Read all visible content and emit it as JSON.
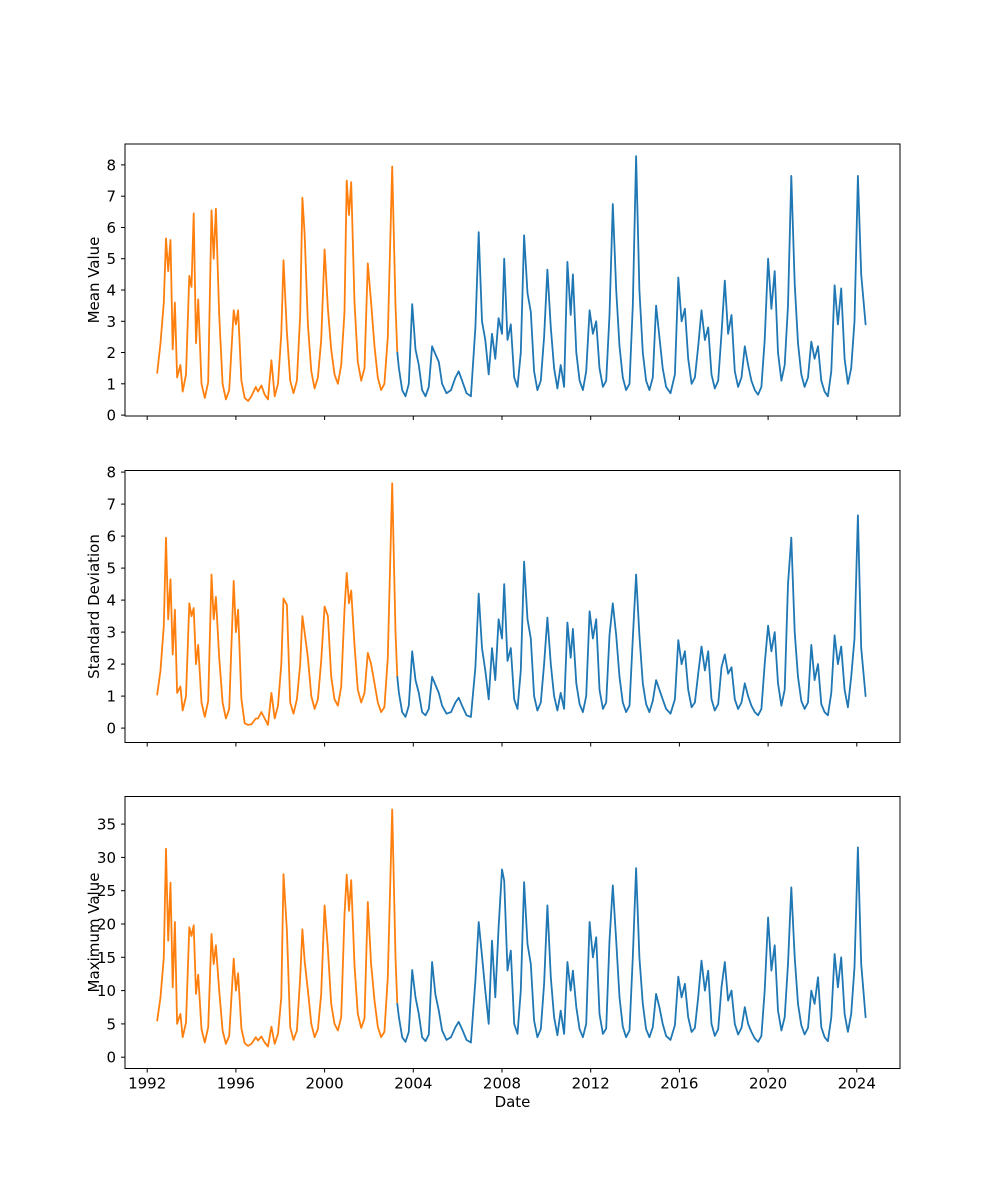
{
  "figure": {
    "background": "#ffffff"
  },
  "chart_data": {
    "type": "line",
    "title": "",
    "xlabel": "Date",
    "grid": false,
    "legend": "none",
    "x_ticks": [
      1992,
      1996,
      2000,
      2004,
      2008,
      2012,
      2016,
      2020,
      2024
    ],
    "xlim": [
      1991.0,
      2025.95
    ],
    "split_year": 2003.28,
    "segments": [
      {
        "name": "pre-2003-segment",
        "color": "#ff7f0e"
      },
      {
        "name": "post-2003-segment",
        "color": "#1f77b4"
      }
    ],
    "subplots": [
      {
        "ylabel": "Mean Value",
        "yticks": [
          0,
          1,
          2,
          3,
          4,
          5,
          6,
          7,
          8
        ],
        "ylim": [
          -0.03,
          8.67
        ]
      },
      {
        "ylabel": "Standard Deviation",
        "yticks": [
          0,
          1,
          2,
          3,
          4,
          5,
          6,
          7,
          8
        ],
        "ylim": [
          -0.45,
          8.05
        ]
      },
      {
        "ylabel": "Maximum Value",
        "yticks": [
          0,
          5,
          10,
          15,
          20,
          25,
          30,
          35
        ],
        "ylim": [
          -1.7,
          39.15
        ]
      }
    ],
    "columns": [
      "date_decimal_year",
      "mean",
      "std",
      "max"
    ],
    "points": [
      [
        1992.45,
        1.35,
        1.05,
        5.5
      ],
      [
        1992.6,
        2.3,
        1.8,
        9.0
      ],
      [
        1992.75,
        3.6,
        3.2,
        15.0
      ],
      [
        1992.85,
        5.65,
        5.95,
        31.3
      ],
      [
        1992.95,
        4.6,
        3.4,
        17.5
      ],
      [
        1993.05,
        5.6,
        4.65,
        26.2
      ],
      [
        1993.15,
        2.1,
        2.3,
        10.5
      ],
      [
        1993.25,
        3.6,
        3.7,
        20.3
      ],
      [
        1993.35,
        1.2,
        1.1,
        5.0
      ],
      [
        1993.5,
        1.6,
        1.3,
        6.5
      ],
      [
        1993.6,
        0.75,
        0.55,
        3.0
      ],
      [
        1993.75,
        1.3,
        1.0,
        5.2
      ],
      [
        1993.9,
        4.45,
        3.9,
        19.5
      ],
      [
        1994.0,
        4.1,
        3.5,
        18.2
      ],
      [
        1994.1,
        6.45,
        3.75,
        19.8
      ],
      [
        1994.2,
        2.3,
        2.0,
        9.5
      ],
      [
        1994.3,
        3.7,
        2.6,
        12.4
      ],
      [
        1994.45,
        1.0,
        0.8,
        4.2
      ],
      [
        1994.6,
        0.55,
        0.35,
        2.2
      ],
      [
        1994.75,
        1.05,
        0.85,
        4.5
      ],
      [
        1994.9,
        6.55,
        4.8,
        18.5
      ],
      [
        1995.0,
        5.0,
        3.4,
        14.0
      ],
      [
        1995.1,
        6.6,
        4.1,
        16.8
      ],
      [
        1995.25,
        3.2,
        2.2,
        10.0
      ],
      [
        1995.4,
        1.0,
        0.8,
        4.0
      ],
      [
        1995.55,
        0.5,
        0.3,
        2.0
      ],
      [
        1995.7,
        0.8,
        0.6,
        3.2
      ],
      [
        1995.9,
        3.35,
        4.6,
        14.8
      ],
      [
        1996.0,
        2.9,
        3.0,
        10.0
      ],
      [
        1996.1,
        3.35,
        3.7,
        12.6
      ],
      [
        1996.25,
        1.1,
        0.9,
        4.3
      ],
      [
        1996.4,
        0.55,
        0.15,
        2.1
      ],
      [
        1996.55,
        0.45,
        0.1,
        1.7
      ],
      [
        1996.7,
        0.6,
        0.12,
        2.0
      ],
      [
        1996.9,
        0.9,
        0.3,
        3.0
      ],
      [
        1997.0,
        0.75,
        0.3,
        2.5
      ],
      [
        1997.15,
        0.95,
        0.5,
        3.1
      ],
      [
        1997.3,
        0.65,
        0.3,
        2.2
      ],
      [
        1997.45,
        0.5,
        0.1,
        1.6
      ],
      [
        1997.6,
        1.75,
        1.1,
        4.6
      ],
      [
        1997.75,
        0.6,
        0.3,
        2.0
      ],
      [
        1997.9,
        1.0,
        0.7,
        3.5
      ],
      [
        1998.05,
        2.6,
        2.0,
        9.0
      ],
      [
        1998.15,
        4.95,
        4.05,
        27.5
      ],
      [
        1998.3,
        2.65,
        3.85,
        19.0
      ],
      [
        1998.45,
        1.1,
        0.8,
        4.5
      ],
      [
        1998.6,
        0.7,
        0.45,
        2.6
      ],
      [
        1998.75,
        1.1,
        0.9,
        4.0
      ],
      [
        1998.9,
        3.2,
        2.0,
        12.0
      ],
      [
        1999.0,
        6.95,
        3.5,
        19.2
      ],
      [
        1999.1,
        5.8,
        3.0,
        14.5
      ],
      [
        1999.25,
        2.9,
        2.2,
        10.0
      ],
      [
        1999.4,
        1.4,
        1.0,
        5.0
      ],
      [
        1999.55,
        0.85,
        0.6,
        3.0
      ],
      [
        1999.7,
        1.2,
        0.9,
        4.2
      ],
      [
        1999.85,
        2.4,
        2.1,
        9.5
      ],
      [
        2000.0,
        5.3,
        3.8,
        22.8
      ],
      [
        2000.15,
        3.4,
        3.5,
        16.2
      ],
      [
        2000.3,
        2.1,
        1.6,
        8.0
      ],
      [
        2000.45,
        1.3,
        0.9,
        5.0
      ],
      [
        2000.6,
        1.0,
        0.7,
        4.0
      ],
      [
        2000.75,
        1.6,
        1.3,
        6.0
      ],
      [
        2000.9,
        3.3,
        3.7,
        21.4
      ],
      [
        2001.0,
        7.5,
        4.85,
        27.4
      ],
      [
        2001.1,
        6.4,
        3.9,
        22.0
      ],
      [
        2001.2,
        7.45,
        4.3,
        26.6
      ],
      [
        2001.35,
        3.6,
        2.6,
        13.8
      ],
      [
        2001.5,
        1.7,
        1.2,
        6.5
      ],
      [
        2001.65,
        1.1,
        0.8,
        4.4
      ],
      [
        2001.8,
        1.5,
        1.1,
        5.8
      ],
      [
        2001.95,
        4.85,
        2.35,
        23.3
      ],
      [
        2002.1,
        3.6,
        2.0,
        14.0
      ],
      [
        2002.25,
        2.2,
        1.4,
        8.5
      ],
      [
        2002.4,
        1.2,
        0.8,
        4.6
      ],
      [
        2002.55,
        0.8,
        0.5,
        3.0
      ],
      [
        2002.7,
        1.0,
        0.65,
        3.8
      ],
      [
        2002.85,
        2.5,
        2.2,
        12.0
      ],
      [
        2003.05,
        7.95,
        7.65,
        37.2
      ],
      [
        2003.2,
        3.5,
        3.0,
        15.0
      ],
      [
        2003.28,
        2.0,
        1.6,
        8.0
      ],
      [
        2003.35,
        1.5,
        1.1,
        6.0
      ],
      [
        2003.5,
        0.8,
        0.5,
        3.0
      ],
      [
        2003.65,
        0.6,
        0.35,
        2.3
      ],
      [
        2003.8,
        1.0,
        0.7,
        3.8
      ],
      [
        2003.95,
        3.55,
        2.4,
        13.1
      ],
      [
        2004.1,
        2.1,
        1.5,
        9.0
      ],
      [
        2004.25,
        1.6,
        1.1,
        6.5
      ],
      [
        2004.4,
        0.8,
        0.5,
        3.0
      ],
      [
        2004.55,
        0.6,
        0.4,
        2.4
      ],
      [
        2004.7,
        0.9,
        0.6,
        3.4
      ],
      [
        2004.85,
        2.2,
        1.6,
        14.3
      ],
      [
        2005.0,
        1.95,
        1.35,
        9.4
      ],
      [
        2005.15,
        1.7,
        1.1,
        7.0
      ],
      [
        2005.3,
        1.0,
        0.7,
        4.0
      ],
      [
        2005.5,
        0.7,
        0.45,
        2.6
      ],
      [
        2005.7,
        0.8,
        0.5,
        3.0
      ],
      [
        2005.9,
        1.2,
        0.8,
        4.5
      ],
      [
        2006.05,
        1.4,
        0.95,
        5.3
      ],
      [
        2006.2,
        1.1,
        0.7,
        4.2
      ],
      [
        2006.4,
        0.7,
        0.4,
        2.6
      ],
      [
        2006.6,
        0.6,
        0.35,
        2.2
      ],
      [
        2006.8,
        2.8,
        1.9,
        11.5
      ],
      [
        2006.95,
        5.85,
        4.2,
        20.3
      ],
      [
        2007.1,
        3.0,
        2.5,
        15.2
      ],
      [
        2007.25,
        2.4,
        1.8,
        10.0
      ],
      [
        2007.4,
        1.3,
        0.9,
        5.0
      ],
      [
        2007.55,
        2.6,
        2.5,
        17.5
      ],
      [
        2007.7,
        1.8,
        1.5,
        9.0
      ],
      [
        2007.85,
        3.1,
        3.4,
        19.5
      ],
      [
        2008.0,
        2.6,
        2.8,
        28.2
      ],
      [
        2008.1,
        5.0,
        4.5,
        26.5
      ],
      [
        2008.25,
        2.4,
        2.1,
        13.0
      ],
      [
        2008.4,
        2.9,
        2.5,
        16.0
      ],
      [
        2008.55,
        1.2,
        0.9,
        5.0
      ],
      [
        2008.7,
        0.9,
        0.6,
        3.5
      ],
      [
        2008.85,
        2.0,
        1.8,
        10.0
      ],
      [
        2009.0,
        5.75,
        5.2,
        26.3
      ],
      [
        2009.15,
        3.9,
        3.4,
        17.0
      ],
      [
        2009.3,
        3.3,
        2.8,
        14.0
      ],
      [
        2009.45,
        1.4,
        1.0,
        5.5
      ],
      [
        2009.6,
        0.8,
        0.55,
        3.0
      ],
      [
        2009.75,
        1.1,
        0.8,
        4.2
      ],
      [
        2009.9,
        2.5,
        2.0,
        11.0
      ],
      [
        2010.05,
        4.65,
        3.45,
        22.8
      ],
      [
        2010.2,
        2.8,
        2.0,
        12.0
      ],
      [
        2010.35,
        1.5,
        1.0,
        6.0
      ],
      [
        2010.5,
        0.85,
        0.55,
        3.3
      ],
      [
        2010.65,
        1.6,
        1.1,
        7.0
      ],
      [
        2010.8,
        0.9,
        0.6,
        3.5
      ],
      [
        2010.95,
        4.9,
        3.3,
        14.3
      ],
      [
        2011.1,
        3.2,
        2.2,
        10.0
      ],
      [
        2011.2,
        4.5,
        3.1,
        13.0
      ],
      [
        2011.35,
        2.0,
        1.4,
        7.5
      ],
      [
        2011.5,
        1.1,
        0.75,
        4.2
      ],
      [
        2011.65,
        0.8,
        0.5,
        3.0
      ],
      [
        2011.8,
        1.4,
        1.0,
        5.0
      ],
      [
        2011.95,
        3.35,
        3.65,
        20.3
      ],
      [
        2012.1,
        2.6,
        2.8,
        15.0
      ],
      [
        2012.25,
        3.0,
        3.4,
        18.0
      ],
      [
        2012.4,
        1.5,
        1.2,
        6.5
      ],
      [
        2012.55,
        0.9,
        0.6,
        3.5
      ],
      [
        2012.7,
        1.1,
        0.8,
        4.3
      ],
      [
        2012.85,
        3.2,
        2.9,
        17.5
      ],
      [
        2013.0,
        6.75,
        3.9,
        25.8
      ],
      [
        2013.15,
        4.0,
        2.9,
        17.5
      ],
      [
        2013.3,
        2.2,
        1.6,
        9.0
      ],
      [
        2013.45,
        1.2,
        0.8,
        4.6
      ],
      [
        2013.6,
        0.8,
        0.5,
        3.0
      ],
      [
        2013.75,
        1.0,
        0.7,
        4.0
      ],
      [
        2013.9,
        3.5,
        2.8,
        15.0
      ],
      [
        2014.05,
        8.28,
        4.8,
        28.4
      ],
      [
        2014.2,
        4.0,
        2.9,
        15.0
      ],
      [
        2014.35,
        2.0,
        1.4,
        8.0
      ],
      [
        2014.5,
        1.1,
        0.75,
        4.2
      ],
      [
        2014.65,
        0.8,
        0.5,
        3.0
      ],
      [
        2014.8,
        1.2,
        0.85,
        4.5
      ],
      [
        2014.95,
        3.5,
        1.5,
        9.5
      ],
      [
        2015.1,
        2.5,
        1.2,
        7.5
      ],
      [
        2015.25,
        1.5,
        0.9,
        5.0
      ],
      [
        2015.4,
        0.9,
        0.6,
        3.2
      ],
      [
        2015.6,
        0.7,
        0.45,
        2.6
      ],
      [
        2015.8,
        1.3,
        0.9,
        4.8
      ],
      [
        2015.95,
        4.4,
        2.75,
        12.1
      ],
      [
        2016.1,
        3.0,
        2.0,
        9.0
      ],
      [
        2016.25,
        3.4,
        2.4,
        11.0
      ],
      [
        2016.4,
        1.8,
        1.2,
        6.0
      ],
      [
        2016.55,
        1.0,
        0.65,
        3.8
      ],
      [
        2016.7,
        1.2,
        0.8,
        4.4
      ],
      [
        2016.85,
        2.2,
        1.7,
        9.0
      ],
      [
        2017.0,
        3.35,
        2.55,
        14.5
      ],
      [
        2017.15,
        2.4,
        1.8,
        10.0
      ],
      [
        2017.3,
        2.8,
        2.4,
        13.0
      ],
      [
        2017.45,
        1.3,
        0.9,
        5.0
      ],
      [
        2017.6,
        0.85,
        0.55,
        3.2
      ],
      [
        2017.75,
        1.1,
        0.75,
        4.2
      ],
      [
        2017.9,
        2.6,
        1.9,
        10.5
      ],
      [
        2018.05,
        4.3,
        2.3,
        14.3
      ],
      [
        2018.2,
        2.6,
        1.7,
        8.5
      ],
      [
        2018.35,
        3.2,
        1.9,
        10.0
      ],
      [
        2018.5,
        1.4,
        0.9,
        5.0
      ],
      [
        2018.65,
        0.9,
        0.6,
        3.4
      ],
      [
        2018.8,
        1.2,
        0.8,
        4.4
      ],
      [
        2018.95,
        2.2,
        1.4,
        7.5
      ],
      [
        2019.1,
        1.6,
        1.0,
        5.0
      ],
      [
        2019.25,
        1.1,
        0.7,
        3.8
      ],
      [
        2019.4,
        0.8,
        0.5,
        2.8
      ],
      [
        2019.55,
        0.65,
        0.4,
        2.3
      ],
      [
        2019.7,
        0.9,
        0.6,
        3.2
      ],
      [
        2019.85,
        2.4,
        2.0,
        10.0
      ],
      [
        2020.0,
        5.0,
        3.2,
        21.0
      ],
      [
        2020.15,
        3.4,
        2.4,
        13.0
      ],
      [
        2020.3,
        4.6,
        3.0,
        16.8
      ],
      [
        2020.45,
        2.0,
        1.4,
        7.0
      ],
      [
        2020.6,
        1.1,
        0.7,
        4.0
      ],
      [
        2020.75,
        1.6,
        1.2,
        6.0
      ],
      [
        2020.9,
        3.5,
        4.5,
        14.0
      ],
      [
        2021.05,
        7.65,
        5.95,
        25.5
      ],
      [
        2021.2,
        4.2,
        3.0,
        15.0
      ],
      [
        2021.35,
        2.3,
        1.6,
        8.0
      ],
      [
        2021.5,
        1.3,
        0.85,
        4.8
      ],
      [
        2021.65,
        0.9,
        0.6,
        3.4
      ],
      [
        2021.8,
        1.2,
        0.8,
        4.4
      ],
      [
        2021.95,
        2.35,
        2.6,
        10.0
      ],
      [
        2022.1,
        1.8,
        1.5,
        8.0
      ],
      [
        2022.25,
        2.2,
        2.0,
        12.0
      ],
      [
        2022.4,
        1.1,
        0.75,
        4.5
      ],
      [
        2022.55,
        0.75,
        0.5,
        3.0
      ],
      [
        2022.7,
        0.6,
        0.4,
        2.4
      ],
      [
        2022.85,
        1.4,
        1.1,
        6.0
      ],
      [
        2023.0,
        4.15,
        2.9,
        15.5
      ],
      [
        2023.15,
        2.9,
        2.0,
        10.5
      ],
      [
        2023.3,
        4.05,
        2.55,
        15.0
      ],
      [
        2023.45,
        1.8,
        1.2,
        6.5
      ],
      [
        2023.6,
        1.0,
        0.65,
        3.8
      ],
      [
        2023.75,
        1.5,
        1.6,
        6.5
      ],
      [
        2023.9,
        3.0,
        2.8,
        13.5
      ],
      [
        2024.05,
        7.65,
        6.65,
        31.5
      ],
      [
        2024.2,
        4.5,
        2.5,
        14.0
      ],
      [
        2024.4,
        2.9,
        1.0,
        6.0
      ]
    ]
  }
}
